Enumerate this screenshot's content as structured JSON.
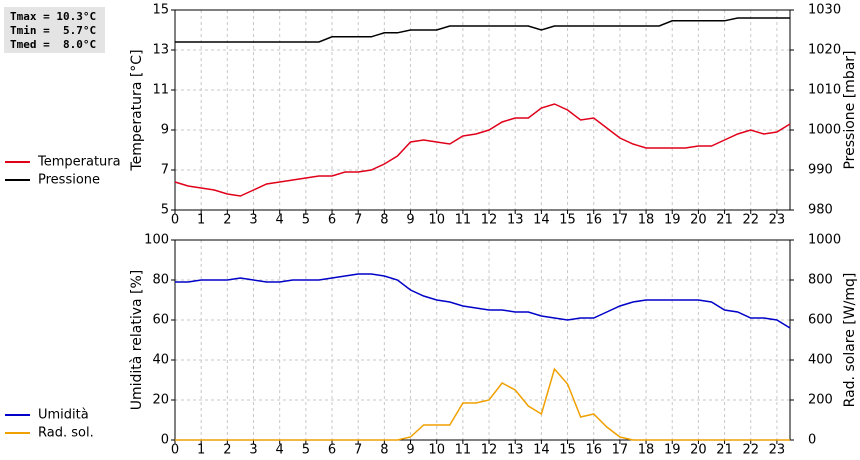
{
  "chart_data": [
    {
      "type": "line",
      "annotations": [
        "Tmax = 10.3°C",
        "Tmin =  5.7°C",
        "Tmed =  8.0°C"
      ],
      "ylabel": "Temperatura [°C]",
      "y2label": "Pressione [mbar]",
      "x": [
        0,
        0.5,
        1,
        1.5,
        2,
        2.5,
        3,
        3.5,
        4,
        4.5,
        5,
        5.5,
        6,
        6.5,
        7,
        7.5,
        8,
        8.5,
        9,
        9.5,
        10,
        10.5,
        11,
        11.5,
        12,
        12.5,
        13,
        13.5,
        14,
        14.5,
        15,
        15.5,
        16,
        16.5,
        17,
        17.5,
        18,
        18.5,
        19,
        19.5,
        20,
        20.5,
        21,
        21.5,
        22,
        22.5,
        23,
        23.5
      ],
      "xlim": [
        0,
        23.5
      ],
      "xticks": [
        0,
        1,
        2,
        3,
        4,
        5,
        6,
        7,
        8,
        9,
        10,
        11,
        12,
        13,
        14,
        15,
        16,
        17,
        18,
        19,
        20,
        21,
        22,
        23
      ],
      "ylim": [
        5,
        15
      ],
      "yticks": [
        5,
        7,
        9,
        11,
        13,
        15
      ],
      "y2lim": [
        980,
        1030
      ],
      "y2ticks": [
        980,
        990,
        1000,
        1010,
        1020,
        1030
      ],
      "grid": true,
      "series": [
        {
          "name": "Temperatura",
          "color": "#e0001a",
          "values": [
            6.4,
            6.2,
            6.1,
            6.0,
            5.8,
            5.7,
            6.0,
            6.3,
            6.4,
            6.5,
            6.6,
            6.7,
            6.7,
            6.9,
            6.9,
            7.0,
            7.3,
            7.7,
            8.4,
            8.5,
            8.4,
            8.3,
            8.7,
            8.8,
            9.0,
            9.4,
            9.6,
            9.6,
            10.1,
            10.3,
            10.0,
            9.5,
            9.6,
            9.1,
            8.6,
            8.3,
            8.1,
            8.1,
            8.1,
            8.1,
            8.2,
            8.2,
            8.5,
            8.8,
            9.0,
            8.8,
            8.9,
            9.3
          ]
        },
        {
          "name": "Pressione",
          "color": "#000000",
          "axis": "y2",
          "values": [
            1022,
            1022,
            1022,
            1022,
            1022,
            1022,
            1022,
            1022,
            1022,
            1022,
            1022,
            1022,
            1023.3,
            1023.3,
            1023.3,
            1023.3,
            1024.3,
            1024.3,
            1025,
            1025,
            1025,
            1026,
            1026,
            1026,
            1026,
            1026,
            1026,
            1026,
            1025,
            1026,
            1026,
            1026,
            1026,
            1026,
            1026,
            1026,
            1026,
            1026,
            1027.3,
            1027.3,
            1027.3,
            1027.3,
            1027.3,
            1028,
            1028,
            1028,
            1028,
            1028
          ]
        }
      ]
    },
    {
      "type": "line",
      "ylabel": "Umidità relativa [%]",
      "y2label": "Rad. solare [W/mq]",
      "x": [
        0,
        0.5,
        1,
        1.5,
        2,
        2.5,
        3,
        3.5,
        4,
        4.5,
        5,
        5.5,
        6,
        6.5,
        7,
        7.5,
        8,
        8.5,
        9,
        9.5,
        10,
        10.5,
        11,
        11.5,
        12,
        12.5,
        13,
        13.5,
        14,
        14.5,
        15,
        15.5,
        16,
        16.5,
        17,
        17.5,
        18,
        18.5,
        19,
        19.5,
        20,
        20.5,
        21,
        21.5,
        22,
        22.5,
        23,
        23.5
      ],
      "xlim": [
        0,
        23.5
      ],
      "xticks": [
        0,
        1,
        2,
        3,
        4,
        5,
        6,
        7,
        8,
        9,
        10,
        11,
        12,
        13,
        14,
        15,
        16,
        17,
        18,
        19,
        20,
        21,
        22,
        23
      ],
      "ylim": [
        0,
        100
      ],
      "yticks": [
        0,
        20,
        40,
        60,
        80,
        100
      ],
      "y2lim": [
        0,
        1000
      ],
      "y2ticks": [
        0,
        200,
        400,
        600,
        800,
        1000
      ],
      "grid": true,
      "series": [
        {
          "name": "Umidità",
          "color": "#0000c8",
          "values": [
            79,
            79,
            80,
            80,
            80,
            81,
            80,
            79,
            79,
            80,
            80,
            80,
            81,
            82,
            83,
            83,
            82,
            80,
            75,
            72,
            70,
            69,
            67,
            66,
            65,
            65,
            64,
            64,
            62,
            61,
            60,
            61,
            61,
            64,
            67,
            69,
            70,
            70,
            70,
            70,
            70,
            69,
            65,
            64,
            61,
            61,
            60,
            56
          ]
        },
        {
          "name": "Rad. sol.",
          "color": "#f0a000",
          "axis": "y2",
          "values": [
            0,
            0,
            0,
            0,
            0,
            0,
            0,
            0,
            0,
            0,
            0,
            0,
            0,
            0,
            0,
            0,
            0,
            0,
            15,
            75,
            75,
            75,
            185,
            185,
            200,
            285,
            250,
            170,
            130,
            355,
            280,
            115,
            130,
            65,
            15,
            0,
            0,
            0,
            0,
            0,
            0,
            0,
            0,
            0,
            0,
            0,
            0,
            0
          ]
        }
      ]
    }
  ]
}
